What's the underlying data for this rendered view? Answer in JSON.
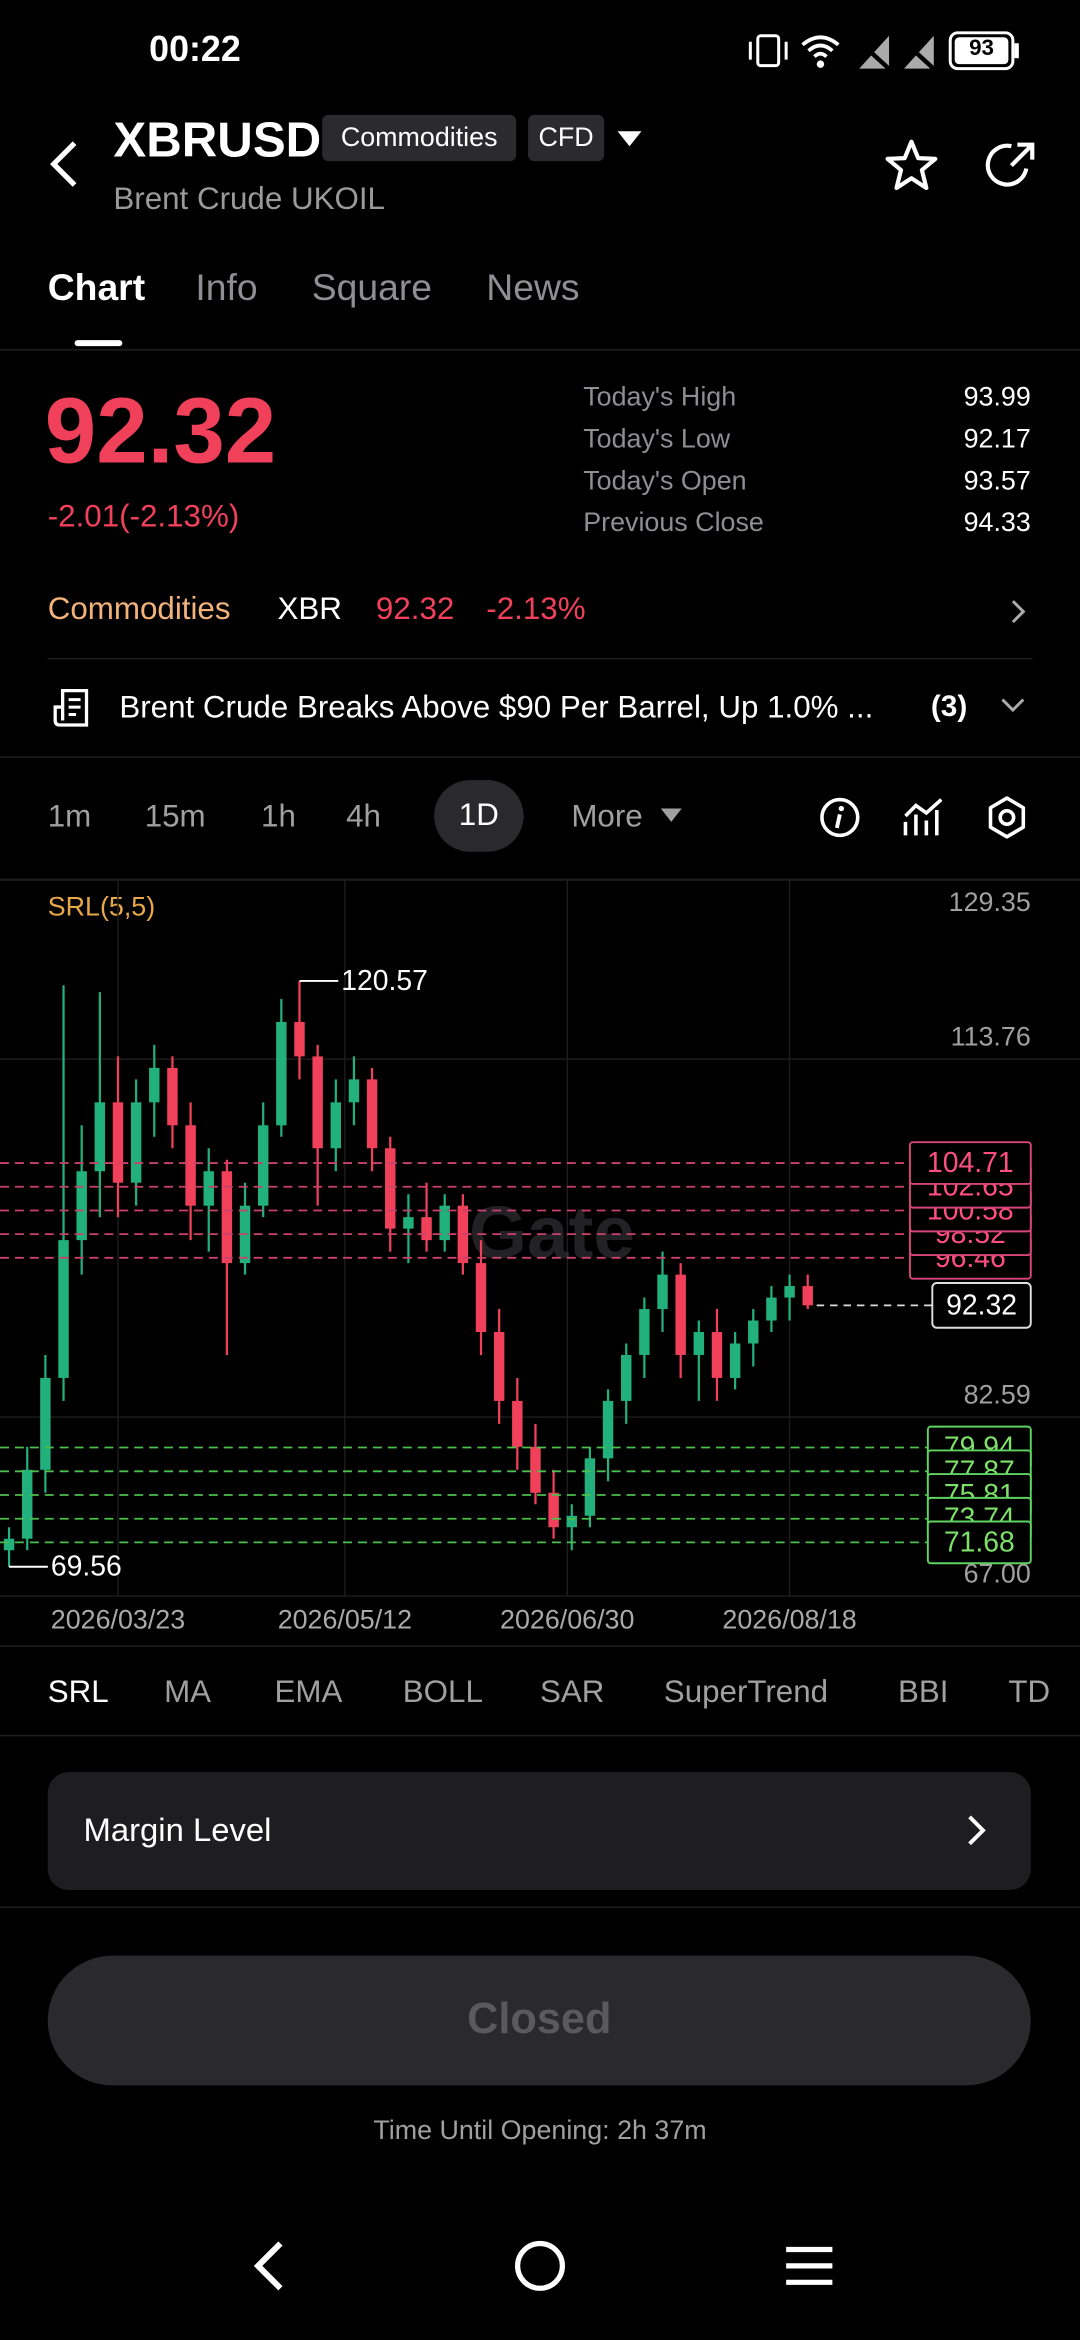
{
  "status_bar": {
    "time": "00:22",
    "battery": "93"
  },
  "header": {
    "symbol": "XBRUSD",
    "tags": [
      "Commodities",
      "CFD"
    ],
    "name": "Brent Crude UKOIL"
  },
  "tabs": [
    "Chart",
    "Info",
    "Square",
    "News"
  ],
  "quote": {
    "price": "92.32",
    "change": "-2.01(-2.13%)",
    "stats": [
      {
        "label": "Today's High",
        "value": "93.99"
      },
      {
        "label": "Today's Low",
        "value": "92.17"
      },
      {
        "label": "Today's Open",
        "value": "93.57"
      },
      {
        "label": "Previous Close",
        "value": "94.33"
      }
    ]
  },
  "sector": {
    "name": "Commodities",
    "symbol": "XBR",
    "price": "92.32",
    "change": "-2.13%"
  },
  "news": {
    "headline": "Brent Crude Breaks Above $90 Per Barrel, Up 1.0% ...",
    "count": "(3)"
  },
  "intervals": [
    "1m",
    "15m",
    "1h",
    "4h",
    "1D",
    "More"
  ],
  "chart_data": {
    "type": "candlestick",
    "indicator_label": "SRL(5,5)",
    "watermark": "Gate",
    "up_color": "#22b07d",
    "down_color": "#f0405a",
    "x": [
      "2026/02/27",
      "2026/03/03",
      "2026/03/07",
      "2026/03/11",
      "2026/03/15",
      "2026/03/19",
      "2026/03/23",
      "2026/03/27",
      "2026/03/31",
      "2026/04/04",
      "2026/04/08",
      "2026/04/12",
      "2026/04/16",
      "2026/04/20",
      "2026/04/24",
      "2026/04/28",
      "2026/05/02",
      "2026/05/06",
      "2026/05/10",
      "2026/05/14",
      "2026/05/18",
      "2026/05/22",
      "2026/05/26",
      "2026/05/30",
      "2026/06/03",
      "2026/06/07",
      "2026/06/11",
      "2026/06/15",
      "2026/06/19",
      "2026/06/23",
      "2026/06/27",
      "2026/07/01",
      "2026/07/05",
      "2026/07/09",
      "2026/07/13",
      "2026/07/17",
      "2026/07/21",
      "2026/07/25",
      "2026/07/29",
      "2026/08/02",
      "2026/08/06",
      "2026/08/10",
      "2026/08/14",
      "2026/08/18",
      "2026/08/22"
    ],
    "open": [
      71,
      72,
      78,
      86,
      98,
      104,
      110,
      103,
      110,
      113,
      108,
      101,
      104,
      96,
      101,
      108,
      117,
      114,
      106,
      110,
      112,
      106,
      99,
      100,
      98,
      101,
      96,
      90,
      84,
      80,
      76,
      73,
      74,
      79,
      84,
      88,
      92,
      95,
      88,
      90,
      86,
      89,
      91,
      93,
      94
    ],
    "high": [
      73,
      80,
      88,
      120.2,
      108,
      119.6,
      114,
      112,
      115,
      114,
      110,
      106,
      105,
      103,
      110,
      119,
      120.57,
      115,
      112,
      114,
      113,
      107,
      102,
      103,
      102,
      102,
      98,
      92,
      86,
      82,
      78,
      75,
      80,
      85,
      89,
      93,
      97,
      96,
      91,
      92,
      90,
      92,
      94,
      95,
      95
    ],
    "low": [
      69.56,
      71,
      76,
      84,
      95,
      100,
      100,
      101,
      107,
      106,
      98,
      97,
      88,
      95,
      100,
      107,
      112,
      101,
      104,
      108,
      104,
      97,
      96,
      97,
      97,
      95,
      88,
      82,
      78,
      75,
      72,
      71,
      73,
      77,
      82,
      86,
      90,
      86,
      84,
      84,
      85,
      87,
      90,
      91,
      92
    ],
    "close": [
      72,
      78,
      86,
      98,
      104,
      110,
      103,
      110,
      113,
      108,
      101,
      104,
      96,
      101,
      108,
      117,
      114,
      106,
      110,
      112,
      106,
      99,
      100,
      98,
      101,
      96,
      90,
      84,
      80,
      76,
      73,
      74,
      79,
      84,
      88,
      92,
      95,
      88,
      90,
      86,
      89,
      91,
      93,
      94,
      92.32
    ],
    "xlim": [
      "2026/02/25",
      "2026/10/21"
    ],
    "xticks": [
      "2026/03/23",
      "2026/05/12",
      "2026/06/30",
      "2026/08/18"
    ],
    "ylim": [
      67.0,
      129.35
    ],
    "yticks": [
      {
        "value": 67,
        "label": "67.00"
      },
      82.59,
      113.76,
      129.35
    ],
    "resistance": [
      104.71,
      102.65,
      100.58,
      98.52,
      96.46
    ],
    "support": [
      79.94,
      77.87,
      75.81,
      73.74,
      71.68
    ],
    "last_price": 92.32,
    "annotations": [
      {
        "x": "2026/05/02",
        "value": 120.57
      },
      {
        "x": "2026/02/27",
        "value": 69.56
      }
    ]
  },
  "indicators": [
    "SRL",
    "MA",
    "EMA",
    "BOLL",
    "SAR",
    "SuperTrend",
    "BBI",
    "TD"
  ],
  "margin": {
    "label": "Margin Level"
  },
  "trade_button": {
    "label": "Closed"
  },
  "opening_note": "Time Until Opening: 2h 37m"
}
